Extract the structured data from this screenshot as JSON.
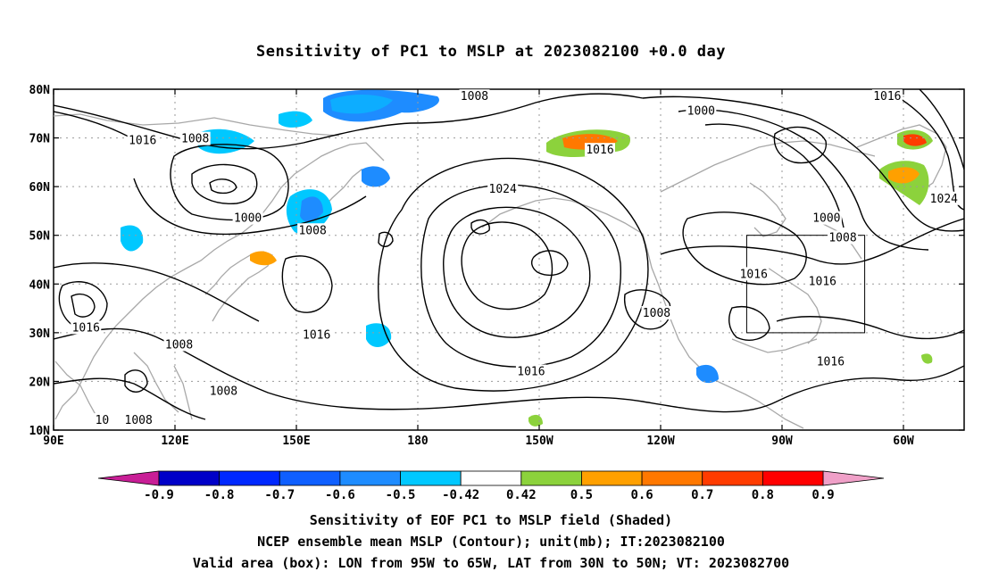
{
  "title": "Sensitivity of PC1 to MSLP at 2023082100 +0.0 day",
  "axes": {
    "lat_ticks": [
      "80N",
      "70N",
      "60N",
      "50N",
      "40N",
      "30N",
      "20N",
      "10N"
    ],
    "lon_ticks": [
      "90E",
      "120E",
      "150E",
      "180",
      "150W",
      "120W",
      "90W",
      "60W"
    ],
    "lon_range": [
      90,
      315
    ],
    "lat_range": [
      10,
      80
    ],
    "grid": "dotted"
  },
  "contour_labels": [
    {
      "text": "1008",
      "lon": 194,
      "lat": 78.5
    },
    {
      "text": "1016",
      "lon": 296,
      "lat": 78.5
    },
    {
      "text": "1000",
      "lon": 250,
      "lat": 75.5
    },
    {
      "text": "1016",
      "lon": 112,
      "lat": 69.5
    },
    {
      "text": "1008",
      "lon": 125,
      "lat": 69.8
    },
    {
      "text": "1016",
      "lon": 225,
      "lat": 67.5
    },
    {
      "text": "1024",
      "lon": 201,
      "lat": 59.5
    },
    {
      "text": "1000",
      "lon": 138,
      "lat": 53.5
    },
    {
      "text": "1008",
      "lon": 154,
      "lat": 51.0
    },
    {
      "text": "1000",
      "lon": 281,
      "lat": 53.5
    },
    {
      "text": "1008",
      "lon": 285,
      "lat": 49.5
    },
    {
      "text": "1024",
      "lon": 310,
      "lat": 57.5
    },
    {
      "text": "1016",
      "lon": 263,
      "lat": 42.0
    },
    {
      "text": "1016",
      "lon": 280,
      "lat": 40.5
    },
    {
      "text": "1008",
      "lon": 239,
      "lat": 34.0
    },
    {
      "text": "1016",
      "lon": 98,
      "lat": 31.0
    },
    {
      "text": "1008",
      "lon": 121,
      "lat": 27.5
    },
    {
      "text": "1016",
      "lon": 155,
      "lat": 29.5
    },
    {
      "text": "1016",
      "lon": 208,
      "lat": 22.0
    },
    {
      "text": "1016",
      "lon": 282,
      "lat": 24.0
    },
    {
      "text": "1008",
      "lon": 132,
      "lat": 18.0
    },
    {
      "text": "10",
      "lon": 102,
      "lat": 12.0
    },
    {
      "text": "1008",
      "lon": 111,
      "lat": 12.0
    }
  ],
  "valid_box": {
    "lon_min": 265,
    "lon_max": 295,
    "lat_min": 30,
    "lat_max": 50
  },
  "colorbar": {
    "labels": [
      "-0.9",
      "-0.8",
      "-0.7",
      "-0.6",
      "-0.5",
      "-0.42",
      "0.42",
      "0.5",
      "0.6",
      "0.7",
      "0.8",
      "0.9"
    ],
    "colors": [
      "#0000c8",
      "#0028ff",
      "#0f5fff",
      "#1e8cff",
      "#00c8ff",
      "#ffffff",
      "#8cd23c",
      "#ffa000",
      "#ff7800",
      "#ff3c00",
      "#ff0000"
    ],
    "low_color": "#c81e96",
    "high_color": "#f0a0c8"
  },
  "captions": [
    "Sensitivity of EOF PC1 to MSLP field (Shaded)",
    "NCEP ensemble mean MSLP (Contour); unit(mb); IT:2023082100",
    "Valid area (box): LON from 95W to 65W, LAT from 30N to 50N; VT: 2023082700"
  ]
}
